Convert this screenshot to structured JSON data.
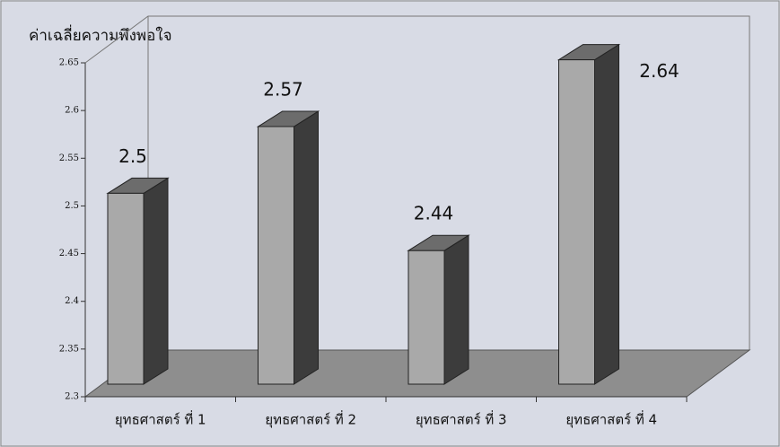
{
  "chart_data": {
    "type": "bar3d",
    "y_label": "ค่าเฉลี่ยความพึงพอใจ",
    "categories": [
      "ยุทธศาสตร์ ที่ 1",
      "ยุทธศาสตร์ ที่ 2",
      "ยุทธศาสตร์ ที่ 3",
      "ยุทธศาสตร์ ที่ 4"
    ],
    "values": [
      2.5,
      2.57,
      2.44,
      2.64
    ],
    "color": "#a9a9a9",
    "ylim": [
      2.3,
      2.65
    ],
    "yticks": [
      2.3,
      2.35,
      2.4,
      2.45,
      2.5,
      2.55,
      2.6,
      2.65
    ],
    "grid": false
  }
}
